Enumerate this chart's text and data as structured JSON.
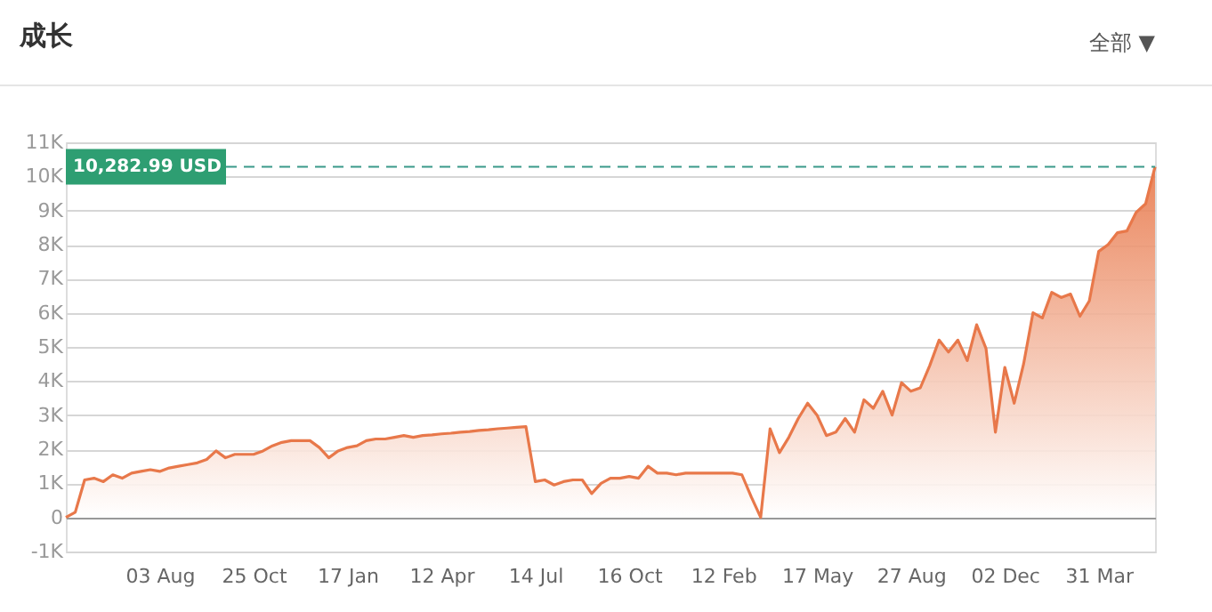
{
  "chart_data": {
    "type": "area",
    "title": "成长",
    "annotations": [
      "全部 ▼"
    ],
    "categories": [
      null,
      null,
      null,
      null,
      null,
      null,
      null,
      null,
      null,
      null,
      "03 Aug",
      null,
      null,
      null,
      null,
      null,
      null,
      null,
      null,
      null,
      "25 Oct",
      null,
      null,
      null,
      null,
      null,
      null,
      null,
      null,
      null,
      "17 Jan",
      null,
      null,
      null,
      null,
      null,
      null,
      null,
      null,
      null,
      "12 Apr",
      null,
      null,
      null,
      null,
      null,
      null,
      null,
      null,
      null,
      "14 Jul",
      null,
      null,
      null,
      null,
      null,
      null,
      null,
      null,
      null,
      "16 Oct",
      null,
      null,
      null,
      null,
      null,
      null,
      null,
      null,
      null,
      "12 Feb",
      null,
      null,
      null,
      null,
      null,
      null,
      null,
      null,
      null,
      "17 May",
      null,
      null,
      null,
      null,
      null,
      null,
      null,
      null,
      null,
      "27 Aug",
      null,
      null,
      null,
      null,
      null,
      null,
      null,
      null,
      null,
      "02 Dec",
      null,
      null,
      null,
      null,
      null,
      null,
      null,
      null,
      null,
      "31 Mar",
      null,
      null,
      null,
      null,
      null,
      null
    ],
    "series": [
      {
        "color": "#e8784a",
        "values": [
          0,
          150,
          1100,
          1150,
          1050,
          1250,
          1150,
          1300,
          1350,
          1400,
          1350,
          1450,
          1500,
          1550,
          1600,
          1700,
          1950,
          1750,
          1850,
          1850,
          1850,
          1950,
          2100,
          2200,
          2250,
          2250,
          2250,
          2050,
          1750,
          1950,
          2050,
          2100,
          2250,
          2300,
          2300,
          2350,
          2400,
          2350,
          2400,
          2420,
          2450,
          2470,
          2500,
          2520,
          2550,
          2570,
          2600,
          2620,
          2640,
          2660,
          1050,
          1100,
          950,
          1050,
          1100,
          1100,
          700,
          1000,
          1150,
          1150,
          1200,
          1150,
          1500,
          1300,
          1300,
          1250,
          1300,
          1300,
          1300,
          1300,
          1300,
          1300,
          1250,
          600,
          0,
          2600,
          1900,
          2350,
          2900,
          3350,
          3000,
          2400,
          2500,
          2900,
          2500,
          3450,
          3200,
          3700,
          3000,
          3950,
          3700,
          3800,
          4450,
          5200,
          4850,
          5200,
          4600,
          5650,
          4950,
          2500,
          4400,
          3350,
          4500,
          6000,
          5850,
          6600,
          6450,
          6550,
          5900,
          6350,
          7800,
          8000,
          8350,
          8400,
          8950,
          9200,
          10282.99
        ]
      }
    ],
    "ylim": [
      -1000,
      11000
    ],
    "yticks": [
      {
        "value": -1000,
        "label": "-1K"
      },
      0,
      {
        "value": 1000,
        "label": "1K"
      },
      {
        "value": 2000,
        "label": "2K"
      },
      {
        "value": 3000,
        "label": "3K"
      },
      {
        "value": 4000,
        "label": "4K"
      },
      {
        "value": 5000,
        "label": "5K"
      },
      {
        "value": 6000,
        "label": "6K"
      },
      {
        "value": 7000,
        "label": "7K"
      },
      {
        "value": 8000,
        "label": "8K"
      },
      {
        "value": 9000,
        "label": "9K"
      },
      {
        "value": 10000,
        "label": "10K"
      },
      {
        "value": 11000,
        "label": "11K"
      }
    ],
    "ref_lines": [
      {
        "axis": "y",
        "value": 10282.99,
        "label": "10,282.99 USD",
        "color": "#3a9a8a",
        "line_style": "dashed"
      }
    ],
    "grid": "y",
    "legend": false,
    "marker": "none",
    "line_style": "solid"
  }
}
